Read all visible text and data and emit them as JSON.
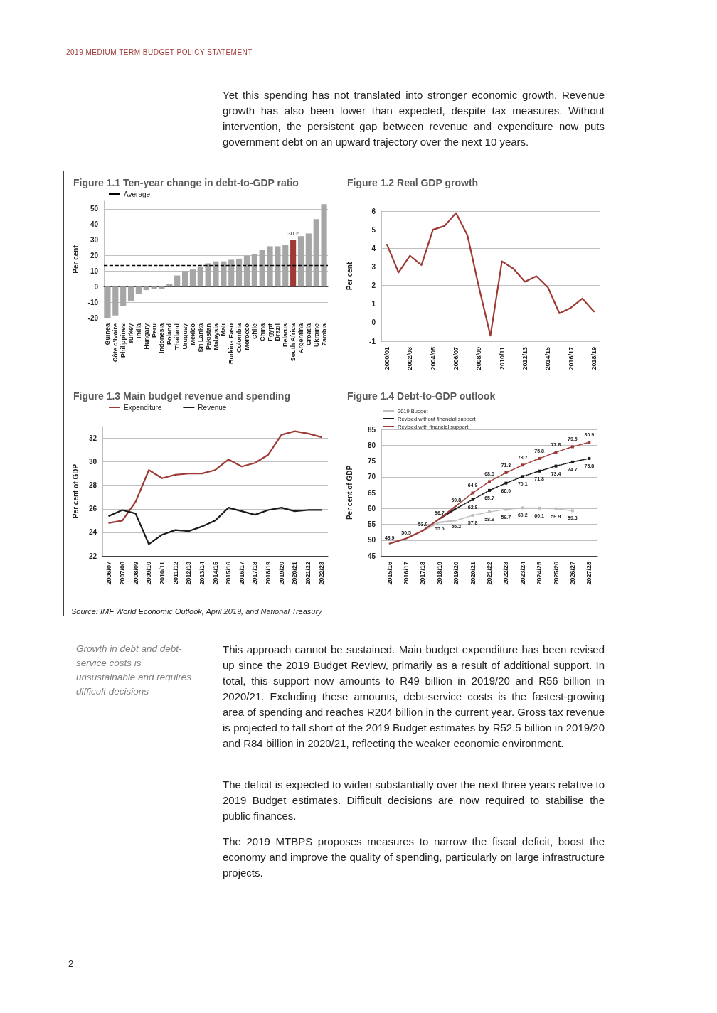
{
  "chart_data": [
    {
      "type": "other",
      "annotations": [
        "2019 MEDIUM TERM BUDGET POLICY STATEMENT",
        "Yet this spending has not translated into stronger economic growth. Revenue growth has also been lower than expected, despite tax measures. Without intervention, the persistent gap between revenue and expenditure now puts government debt on an upward trajectory over the next 10 years."
      ]
    },
    {
      "type": "bar",
      "title": "Figure 1.1 Ten-year change in debt-to-GDP ratio",
      "ylabel": "Per cent",
      "categories": [
        "Guinea",
        "Côte d'Ivoire",
        "Philippines",
        "Turkey",
        "India",
        "Hungary",
        "Peru",
        "Indonesia",
        "Poland",
        "Thailand",
        "Uruguay",
        "Mexico",
        "Sri Lanka",
        "Pakistan",
        "Malaysia",
        "Mali",
        "Burkina Faso",
        "Colombia",
        "Morocco",
        "Chile",
        "China",
        "Egypt",
        "Brazil",
        "Belarus",
        "South Africa",
        "Argentina",
        "Croatia",
        "Ukraine",
        "Zambia"
      ],
      "values": [
        -20,
        -18.5,
        -12.5,
        -9,
        -4.7,
        -2.2,
        -1.5,
        -1.5,
        1.8,
        7.2,
        10,
        11,
        13,
        15,
        16.3,
        16.3,
        17.3,
        18,
        20,
        20.8,
        23.5,
        26,
        26,
        26.8,
        30.2,
        32.5,
        34.2,
        43.5,
        53
      ],
      "colors": [
        "#a6a6a6",
        "#a6a6a6",
        "#a6a6a6",
        "#a6a6a6",
        "#a6a6a6",
        "#a6a6a6",
        "#a6a6a6",
        "#a6a6a6",
        "#a6a6a6",
        "#a6a6a6",
        "#a6a6a6",
        "#a6a6a6",
        "#a6a6a6",
        "#a6a6a6",
        "#a6a6a6",
        "#a6a6a6",
        "#a6a6a6",
        "#a6a6a6",
        "#a6a6a6",
        "#a6a6a6",
        "#a6a6a6",
        "#a6a6a6",
        "#a6a6a6",
        "#a6a6a6",
        "#9e3a35",
        "#a6a6a6",
        "#a6a6a6",
        "#a6a6a6",
        "#a6a6a6"
      ],
      "value_labels": [
        null,
        null,
        null,
        null,
        null,
        null,
        null,
        null,
        null,
        null,
        null,
        null,
        null,
        null,
        null,
        null,
        null,
        null,
        null,
        null,
        null,
        null,
        null,
        null,
        "30.2",
        null,
        null,
        null,
        null
      ],
      "ylim": [
        -20,
        55
      ],
      "yticks": [
        -20,
        -10,
        0,
        10,
        20,
        30,
        40,
        50
      ],
      "grid": "y",
      "legend": "top left",
      "ref_lines": [
        {
          "axis": "y",
          "value": 13.5,
          "label": "Average",
          "color": "#000000",
          "line_style": "dashed"
        }
      ]
    },
    {
      "type": "line",
      "title": "Figure 1.2 Real GDP growth",
      "ylabel": "Per cent",
      "categories": [
        "2000/01",
        null,
        "2002/03",
        null,
        "2004/05",
        null,
        "2006/07",
        null,
        "2008/09",
        null,
        "2010/11",
        null,
        "2012/13",
        null,
        "2014/15",
        null,
        "2016/17",
        null,
        "2018/19"
      ],
      "series": [
        {
          "color": "#9e3a35",
          "values": [
            4.2,
            2.7,
            3.6,
            3.1,
            5.0,
            5.2,
            5.9,
            4.7,
            1.9,
            -0.7,
            3.3,
            2.9,
            2.2,
            2.5,
            1.9,
            0.5,
            0.8,
            1.3,
            0.6
          ]
        }
      ],
      "ylim": [
        -1,
        6
      ],
      "yticks": [
        -1,
        0,
        1,
        2,
        3,
        4,
        5,
        6
      ],
      "grid": "y"
    },
    {
      "type": "line",
      "title": "Figure 1.3 Main budget revenue and spending",
      "ylabel": "Per cent of GDP",
      "categories": [
        "2006/07",
        "2007/08",
        "2008/09",
        "2009/10",
        "2010/11",
        "2011/12",
        "2012/13",
        "2013/14",
        "2014/15",
        "2015/16",
        "2016/17",
        "2017/18",
        "2018/19",
        "2019/20",
        "2020/21",
        "2021/22",
        "2022/23"
      ],
      "series": [
        {
          "name": "Expenditure",
          "color": "#9e3a35",
          "values": [
            24.8,
            25.0,
            26.6,
            29.3,
            28.6,
            28.9,
            29.0,
            29.0,
            29.3,
            30.2,
            29.6,
            29.9,
            30.6,
            32.3,
            32.6,
            32.4,
            32.1
          ]
        },
        {
          "name": "Revenue",
          "color": "#1a1a1a",
          "values": [
            25.4,
            25.9,
            25.6,
            23.0,
            23.8,
            24.2,
            24.1,
            24.5,
            25.0,
            26.1,
            25.8,
            25.5,
            25.9,
            26.1,
            25.8,
            25.9,
            25.9
          ]
        }
      ],
      "ylim": [
        22,
        33
      ],
      "yticks": [
        22,
        24,
        26,
        28,
        30,
        32
      ],
      "grid": "y",
      "legend": "top left",
      "annotations": [
        "Source:  IMF World Economic Outlook, April 2019, and National Treasury"
      ]
    },
    {
      "type": "line",
      "title": "Figure 1.4 Debt-to-GDP outlook",
      "ylabel": "Per cent of GDP",
      "categories": [
        "2015/16",
        "2016/17",
        "2017/18",
        "2018/19",
        "2019/20",
        "2020/21",
        "2021/22",
        "2022/23",
        "2023/24",
        "2024/25",
        "2025/26",
        "2026/27",
        "2027/28"
      ],
      "series": [
        {
          "name": "2019 Budget",
          "color": "#bfbfbf",
          "line_style": "solid",
          "marker": "none",
          "values": [
            null,
            null,
            53.0,
            55.6,
            56.2,
            null,
            null,
            null,
            null,
            null,
            null,
            null,
            null
          ],
          "value_labels": [
            null,
            null,
            null,
            "55.6",
            "56.2",
            null,
            null,
            null,
            null,
            null,
            null,
            null,
            null
          ]
        },
        {
          "name": "Revised without financial support",
          "color": "#1a1a1a",
          "line_style": "solid",
          "marker": "none",
          "values": [
            null,
            null,
            null,
            56.7,
            60.0,
            null,
            null,
            null,
            null,
            null,
            null,
            null,
            null
          ]
        },
        {
          "name": "Revised with financial support",
          "color": "#9e3a35",
          "line_style": "solid",
          "marker": "none",
          "values": [
            48.9,
            50.5,
            53.0,
            56.7,
            60.8,
            null,
            null,
            null,
            null,
            null,
            null,
            null,
            null
          ],
          "value_labels": [
            "48.9",
            "50.5",
            "53.0",
            "56.7",
            "60.8",
            null,
            null,
            null,
            null,
            null,
            null,
            null,
            null
          ]
        },
        {
          "color": "#bfbfbf",
          "line_style": "dotted",
          "marker": "square",
          "values": [
            null,
            null,
            null,
            null,
            56.2,
            57.8,
            58.9,
            59.7,
            60.2,
            60.1,
            59.9,
            59.3,
            null
          ],
          "value_labels": [
            null,
            null,
            null,
            null,
            null,
            "57.8",
            "58.9",
            "59.7",
            "60.2",
            "60.1",
            "59.9",
            "59.3",
            null
          ]
        },
        {
          "color": "#1a1a1a",
          "line_style": "dotted",
          "marker": "square",
          "values": [
            null,
            null,
            null,
            null,
            60.0,
            62.8,
            65.7,
            68.0,
            70.1,
            71.8,
            73.4,
            74.7,
            75.8
          ],
          "value_labels": [
            null,
            null,
            null,
            null,
            null,
            "62.8",
            "65.7",
            "68.0",
            "70.1",
            "71.8",
            "73.4",
            "74.7",
            "75.8"
          ]
        },
        {
          "color": "#9e3a35",
          "line_style": "dotted",
          "marker": "square",
          "values": [
            null,
            null,
            null,
            null,
            60.8,
            64.9,
            68.5,
            71.3,
            73.7,
            75.8,
            77.8,
            79.5,
            80.9
          ],
          "value_labels": [
            null,
            null,
            null,
            null,
            null,
            "64.9",
            "68.5",
            "71.3",
            "73.7",
            "75.8",
            "77.8",
            "79.5",
            "80.9"
          ]
        }
      ],
      "ylim": [
        45,
        85
      ],
      "yticks": [
        45,
        50,
        55,
        60,
        65,
        70,
        75,
        80,
        85
      ],
      "grid": "y",
      "legend": "top left"
    },
    {
      "type": "other",
      "annotations": [
        "Growth in debt and debt-service costs is unsustainable and requires difficult decisions",
        "This approach cannot be sustained. Main budget expenditure has been revised up since the 2019 Budget Review, primarily as a result of additional support. In total, this support now amounts to R49 billion in 2019/20 and R56 billion in 2020/21. Excluding these amounts, debt-service costs is the fastest-growing area of spending and reaches R204 billion in the current year. Gross tax revenue is projected to fall short of the 2019 Budget estimates by R52.5 billion in 2019/20 and R84 billion in 2020/21, reflecting the weaker economic environment.",
        "The deficit is expected to widen substantially over the next three years relative to 2019 Budget estimates. Difficult decisions are now required to stabilise the public finances.",
        "The 2019 MTBPS proposes measures to narrow the fiscal deficit, boost the economy and improve the quality of spending, particularly on large infrastructure projects.",
        "2"
      ]
    }
  ]
}
